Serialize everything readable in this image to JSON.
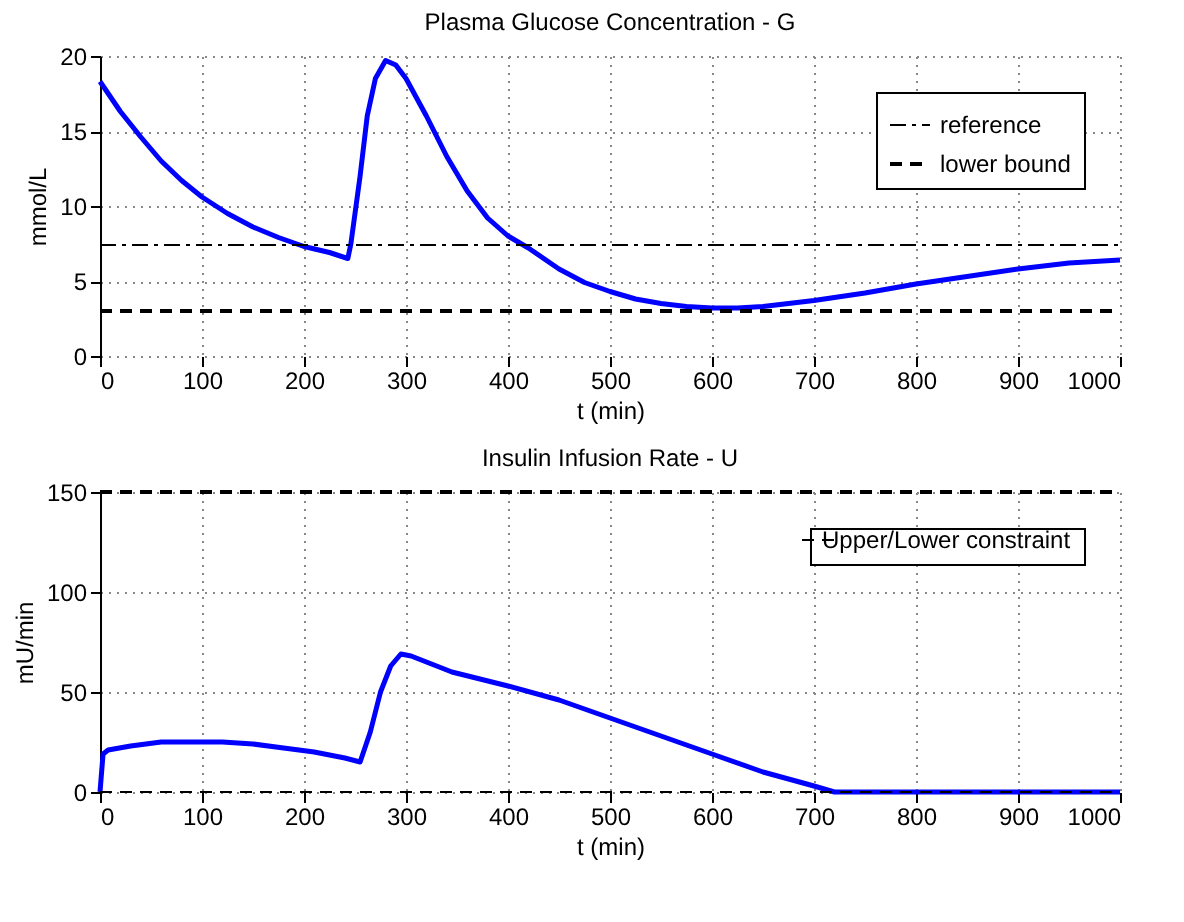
{
  "chart_data": [
    {
      "type": "line",
      "title": "Plasma Glucose Concentration - G",
      "xlabel": "t (min)",
      "ylabel": "mmol/L",
      "xlim": [
        0,
        1000
      ],
      "xticks": [
        0,
        100,
        200,
        300,
        400,
        500,
        600,
        700,
        800,
        900,
        1000
      ],
      "ylim": [
        0,
        20
      ],
      "yticks": [
        0,
        5,
        10,
        15,
        20
      ],
      "grid": true,
      "legend": "top right",
      "series": [
        {
          "color": "#0000ff",
          "line_style": "solid",
          "x": [
            0,
            20,
            40,
            60,
            80,
            100,
            125,
            150,
            175,
            200,
            225,
            243,
            246,
            255,
            262,
            270,
            280,
            290,
            300,
            320,
            340,
            360,
            380,
            400,
            420,
            450,
            475,
            500,
            525,
            550,
            575,
            600,
            625,
            650,
            700,
            750,
            800,
            850,
            900,
            950,
            1000
          ],
          "values": [
            18.3,
            16.3,
            14.6,
            13.0,
            11.7,
            10.6,
            9.5,
            8.6,
            7.9,
            7.3,
            6.9,
            6.5,
            7.5,
            12,
            16,
            18.5,
            19.7,
            19.4,
            18.5,
            16,
            13.3,
            11,
            9.2,
            8,
            7.2,
            5.8,
            4.9,
            4.3,
            3.8,
            3.5,
            3.3,
            3.2,
            3.2,
            3.3,
            3.7,
            4.2,
            4.8,
            5.3,
            5.8,
            6.2,
            6.4
          ]
        },
        {
          "name": "reference",
          "color": "#000000",
          "line_style": "dashdot",
          "x": [
            0,
            1000
          ],
          "values": [
            7.4,
            7.4
          ]
        },
        {
          "name": "lower bound",
          "color": "#000000",
          "line_style": "dashed",
          "x": [
            0,
            1000
          ],
          "values": [
            3.0,
            3.0
          ]
        }
      ]
    },
    {
      "type": "line",
      "title": "Insulin Infusion Rate - U",
      "xlabel": "t (min)",
      "ylabel": "mU/min",
      "xlim": [
        0,
        1000
      ],
      "xticks": [
        0,
        100,
        200,
        300,
        400,
        500,
        600,
        700,
        800,
        900,
        1000
      ],
      "ylim": [
        0,
        150
      ],
      "yticks": [
        0,
        50,
        100,
        150
      ],
      "grid": true,
      "legend": "top right",
      "series": [
        {
          "color": "#0000ff",
          "line_style": "solid",
          "x": [
            0,
            3,
            8,
            30,
            60,
            90,
            120,
            150,
            180,
            210,
            240,
            255,
            265,
            275,
            285,
            295,
            305,
            320,
            345,
            400,
            450,
            500,
            550,
            600,
            650,
            700,
            720,
            1000
          ],
          "values": [
            0,
            19,
            21,
            23,
            25,
            25,
            25,
            24,
            22,
            20,
            17,
            15,
            30,
            50,
            63,
            69,
            68,
            65,
            60,
            53,
            46,
            37,
            28,
            19,
            10,
            3,
            0,
            0
          ]
        },
        {
          "name": "Upper/Lower constraint",
          "color": "#000000",
          "line_style": "dashed",
          "x": [
            0,
            1000
          ],
          "values": [
            0,
            0
          ]
        },
        {
          "color": "#000000",
          "line_style": "dashed",
          "x": [
            0,
            1000
          ],
          "values": [
            150,
            150
          ]
        }
      ]
    }
  ]
}
